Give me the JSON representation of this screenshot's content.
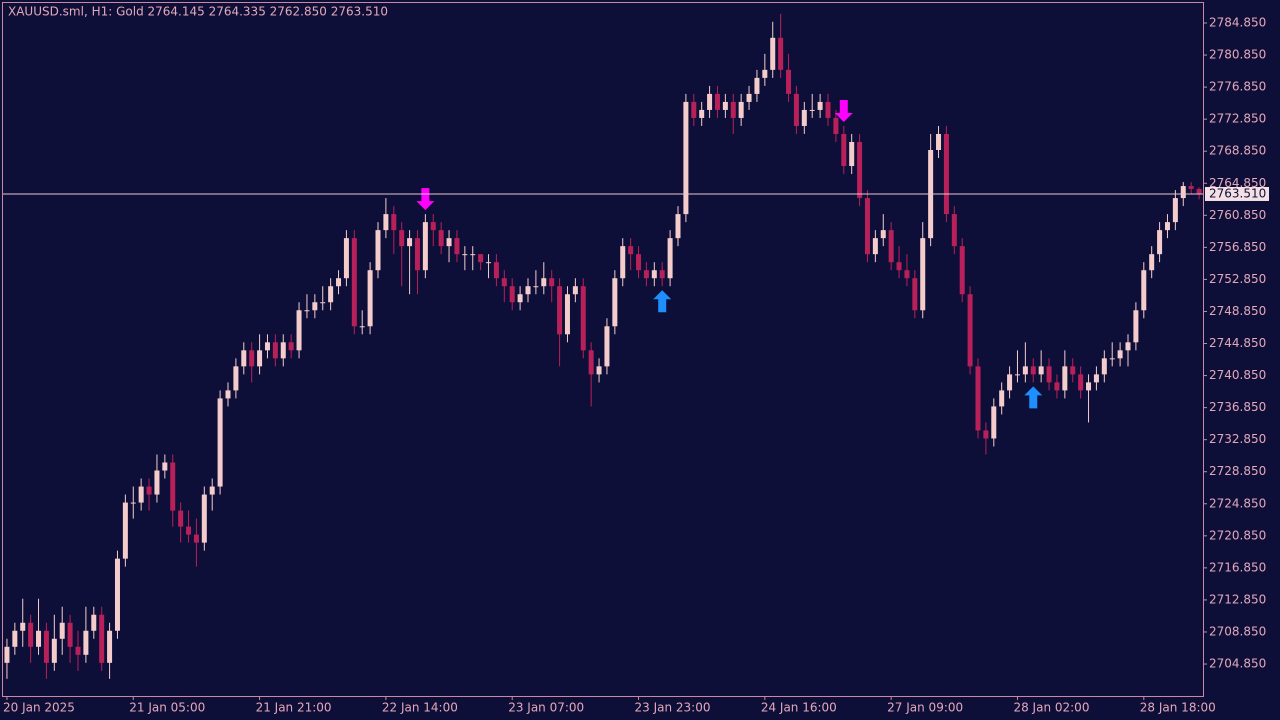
{
  "chart_data": {
    "type": "candlestick",
    "title": "XAUUSD.sml, H1:  Gold  2764.145 2764.335 2762.850 2763.510",
    "bull_color": "#f4cccc",
    "bear_color": "#b8205a",
    "ylim": [
      2700.86,
      2787.72
    ],
    "yticks": [
      {
        "value": 2704.85,
        "label": "2704.850"
      },
      {
        "value": 2708.85,
        "label": "2708.850"
      },
      {
        "value": 2712.85,
        "label": "2712.850"
      },
      {
        "value": 2716.85,
        "label": "2716.850"
      },
      {
        "value": 2720.85,
        "label": "2720.850"
      },
      {
        "value": 2724.85,
        "label": "2724.850"
      },
      {
        "value": 2728.85,
        "label": "2728.850"
      },
      {
        "value": 2732.85,
        "label": "2732.850"
      },
      {
        "value": 2736.85,
        "label": "2736.850"
      },
      {
        "value": 2740.85,
        "label": "2740.850"
      },
      {
        "value": 2744.85,
        "label": "2744.850"
      },
      {
        "value": 2748.85,
        "label": "2748.850"
      },
      {
        "value": 2752.85,
        "label": "2752.850"
      },
      {
        "value": 2756.85,
        "label": "2756.850"
      },
      {
        "value": 2760.85,
        "label": "2760.850"
      },
      {
        "value": 2764.85,
        "label": "2764.850"
      },
      {
        "value": 2768.85,
        "label": "2768.850"
      },
      {
        "value": 2772.85,
        "label": "2772.850"
      },
      {
        "value": 2776.85,
        "label": "2776.850"
      },
      {
        "value": 2780.85,
        "label": "2780.850"
      },
      {
        "value": 2784.85,
        "label": "2784.850"
      }
    ],
    "xticks": [
      {
        "value": 0,
        "label": "20 Jan 2025"
      },
      {
        "value": 16,
        "label": "21 Jan 05:00"
      },
      {
        "value": 32,
        "label": "21 Jan 21:00"
      },
      {
        "value": 48,
        "label": "22 Jan 14:00"
      },
      {
        "value": 64,
        "label": "23 Jan 07:00"
      },
      {
        "value": 80,
        "label": "23 Jan 23:00"
      },
      {
        "value": 96,
        "label": "24 Jan 16:00"
      },
      {
        "value": 112,
        "label": "27 Jan 09:00"
      },
      {
        "value": 128,
        "label": "28 Jan 02:00"
      },
      {
        "value": 144,
        "label": "28 Jan 18:00"
      }
    ],
    "last_price": {
      "value": 2763.51,
      "label": "2763.510"
    },
    "buy_signals": [
      83,
      130
    ],
    "sell_signals": [
      53,
      106
    ],
    "buy_color": "#1e8fff",
    "sell_color": "#ff00ff",
    "candles": [
      [
        2705,
        2708,
        2703,
        2707
      ],
      [
        2707,
        2710,
        2706,
        2709
      ],
      [
        2709,
        2713,
        2707,
        2710
      ],
      [
        2710,
        2711,
        2705,
        2707
      ],
      [
        2707,
        2713,
        2706,
        2709
      ],
      [
        2709,
        2710,
        2703,
        2705
      ],
      [
        2705,
        2711,
        2704,
        2708
      ],
      [
        2708,
        2712,
        2706,
        2710
      ],
      [
        2710,
        2711,
        2705,
        2707
      ],
      [
        2707,
        2709,
        2704,
        2706
      ],
      [
        2706,
        2712,
        2705,
        2709
      ],
      [
        2709,
        2712,
        2708,
        2711
      ],
      [
        2711,
        2712,
        2704,
        2705
      ],
      [
        2705,
        2710,
        2703,
        2709
      ],
      [
        2709,
        2719,
        2708,
        2718
      ],
      [
        2718,
        2726,
        2717,
        2725
      ],
      [
        2725,
        2727,
        2723,
        2725
      ],
      [
        2725,
        2728,
        2724,
        2727
      ],
      [
        2727,
        2728,
        2724,
        2726
      ],
      [
        2726,
        2731,
        2725,
        2729
      ],
      [
        2729,
        2731,
        2728,
        2730
      ],
      [
        2730,
        2731,
        2722,
        2724
      ],
      [
        2724,
        2725,
        2720,
        2722
      ],
      [
        2722,
        2724,
        2720,
        2721
      ],
      [
        2721,
        2723,
        2717,
        2720
      ],
      [
        2720,
        2727,
        2719,
        2726
      ],
      [
        2726,
        2728,
        2724,
        2727
      ],
      [
        2727,
        2739,
        2726,
        2738
      ],
      [
        2738,
        2740,
        2737,
        2739
      ],
      [
        2739,
        2743,
        2738,
        2742
      ],
      [
        2742,
        2745,
        2741,
        2744
      ],
      [
        2744,
        2745,
        2740,
        2742
      ],
      [
        2742,
        2746,
        2741,
        2744
      ],
      [
        2744,
        2746,
        2743,
        2745
      ],
      [
        2745,
        2746,
        2742,
        2743
      ],
      [
        2743,
        2746,
        2742,
        2745
      ],
      [
        2745,
        2746,
        2743,
        2744
      ],
      [
        2744,
        2750,
        2743,
        2749
      ],
      [
        2749,
        2751,
        2748,
        2749
      ],
      [
        2749,
        2751,
        2748,
        2750
      ],
      [
        2750,
        2752,
        2749,
        2750
      ],
      [
        2750,
        2753,
        2749,
        2752
      ],
      [
        2752,
        2754,
        2751,
        2753
      ],
      [
        2753,
        2759,
        2752,
        2758
      ],
      [
        2758,
        2759,
        2746,
        2747
      ],
      [
        2747,
        2749,
        2746,
        2747
      ],
      [
        2747,
        2755,
        2746,
        2754
      ],
      [
        2754,
        2760,
        2753,
        2759
      ],
      [
        2759,
        2763,
        2758,
        2761
      ],
      [
        2761,
        2762,
        2756,
        2759
      ],
      [
        2759,
        2760,
        2752,
        2757
      ],
      [
        2757,
        2759,
        2751,
        2758
      ],
      [
        2758,
        2759,
        2751,
        2754
      ],
      [
        2754,
        2761,
        2753,
        2760
      ],
      [
        2760,
        2761,
        2757,
        2759
      ],
      [
        2759,
        2760,
        2756,
        2757
      ],
      [
        2757,
        2759,
        2755,
        2758
      ],
      [
        2758,
        2759,
        2755,
        2756
      ],
      [
        2756,
        2757,
        2754,
        2756
      ],
      [
        2756,
        2757,
        2754,
        2756
      ],
      [
        2756,
        2756,
        2754,
        2755
      ],
      [
        2755,
        2756,
        2753,
        2755
      ],
      [
        2755,
        2756,
        2752,
        2753
      ],
      [
        2753,
        2754,
        2750,
        2752
      ],
      [
        2752,
        2753,
        2749,
        2750
      ],
      [
        2750,
        2752,
        2749,
        2751
      ],
      [
        2751,
        2753,
        2750,
        2752
      ],
      [
        2752,
        2754,
        2751,
        2752
      ],
      [
        2752,
        2755,
        2751,
        2753
      ],
      [
        2753,
        2754,
        2750,
        2752
      ],
      [
        2752,
        2753,
        2742,
        2746
      ],
      [
        2746,
        2752,
        2745,
        2751
      ],
      [
        2751,
        2753,
        2750,
        2752
      ],
      [
        2752,
        2753,
        2743,
        2744
      ],
      [
        2744,
        2745,
        2737,
        2741
      ],
      [
        2741,
        2743,
        2740,
        2742
      ],
      [
        2742,
        2748,
        2741,
        2747
      ],
      [
        2747,
        2754,
        2746,
        2753
      ],
      [
        2753,
        2758,
        2752,
        2757
      ],
      [
        2757,
        2758,
        2754,
        2756
      ],
      [
        2756,
        2757,
        2753,
        2754
      ],
      [
        2754,
        2755,
        2752,
        2753
      ],
      [
        2753,
        2755,
        2752,
        2754
      ],
      [
        2754,
        2755,
        2752,
        2753
      ],
      [
        2753,
        2759,
        2752,
        2758
      ],
      [
        2758,
        2762,
        2757,
        2761
      ],
      [
        2761,
        2776,
        2760,
        2775
      ],
      [
        2775,
        2776,
        2772,
        2773
      ],
      [
        2773,
        2775,
        2772,
        2774
      ],
      [
        2774,
        2777,
        2773,
        2776
      ],
      [
        2776,
        2777,
        2773,
        2774
      ],
      [
        2774,
        2776,
        2773,
        2775
      ],
      [
        2775,
        2776,
        2771,
        2773
      ],
      [
        2773,
        2776,
        2772,
        2775
      ],
      [
        2775,
        2777,
        2774,
        2776
      ],
      [
        2776,
        2779,
        2775,
        2778
      ],
      [
        2778,
        2781,
        2777,
        2779
      ],
      [
        2779,
        2785,
        2778,
        2783
      ],
      [
        2783,
        2786,
        2778,
        2779
      ],
      [
        2779,
        2781,
        2775,
        2776
      ],
      [
        2776,
        2777,
        2771,
        2772
      ],
      [
        2772,
        2775,
        2771,
        2774
      ],
      [
        2774,
        2776,
        2773,
        2774
      ],
      [
        2774,
        2776,
        2773,
        2775
      ],
      [
        2775,
        2776,
        2772,
        2773
      ],
      [
        2773,
        2774,
        2770,
        2771
      ],
      [
        2771,
        2772,
        2766,
        2767
      ],
      [
        2767,
        2771,
        2766,
        2770
      ],
      [
        2770,
        2771,
        2762,
        2763
      ],
      [
        2763,
        2764,
        2755,
        2756
      ],
      [
        2756,
        2759,
        2755,
        2758
      ],
      [
        2758,
        2761,
        2757,
        2759
      ],
      [
        2759,
        2760,
        2754,
        2755
      ],
      [
        2755,
        2757,
        2753,
        2754
      ],
      [
        2754,
        2756,
        2752,
        2753
      ],
      [
        2753,
        2754,
        2748,
        2749
      ],
      [
        2749,
        2760,
        2748,
        2758
      ],
      [
        2758,
        2771,
        2757,
        2769
      ],
      [
        2769,
        2772,
        2768,
        2771
      ],
      [
        2771,
        2772,
        2760,
        2761
      ],
      [
        2761,
        2762,
        2756,
        2757
      ],
      [
        2757,
        2758,
        2750,
        2751
      ],
      [
        2751,
        2752,
        2741,
        2742
      ],
      [
        2742,
        2743,
        2733,
        2734
      ],
      [
        2734,
        2735,
        2731,
        2733
      ],
      [
        2733,
        2738,
        2732,
        2737
      ],
      [
        2737,
        2740,
        2736,
        2739
      ],
      [
        2739,
        2742,
        2738,
        2741
      ],
      [
        2741,
        2744,
        2740,
        2741
      ],
      [
        2741,
        2745,
        2740,
        2742
      ],
      [
        2742,
        2743,
        2740,
        2741
      ],
      [
        2741,
        2744,
        2740,
        2742
      ],
      [
        2742,
        2743,
        2739,
        2740
      ],
      [
        2740,
        2741,
        2738,
        2739
      ],
      [
        2739,
        2744,
        2738,
        2742
      ],
      [
        2742,
        2743,
        2740,
        2741
      ],
      [
        2741,
        2742,
        2738,
        2739
      ],
      [
        2739,
        2741,
        2735,
        2740
      ],
      [
        2740,
        2742,
        2739,
        2741
      ],
      [
        2741,
        2744,
        2740,
        2743
      ],
      [
        2743,
        2745,
        2742,
        2743
      ],
      [
        2743,
        2745,
        2742,
        2744
      ],
      [
        2744,
        2746,
        2742,
        2745
      ],
      [
        2745,
        2750,
        2744,
        2749
      ],
      [
        2749,
        2755,
        2748,
        2754
      ],
      [
        2754,
        2757,
        2753,
        2756
      ],
      [
        2756,
        2760,
        2755,
        2759
      ],
      [
        2759,
        2761,
        2758,
        2760
      ],
      [
        2760,
        2764,
        2759,
        2763
      ],
      [
        2763,
        2765,
        2762,
        2764.5
      ],
      [
        2764.5,
        2765,
        2763.5,
        2764.145
      ],
      [
        2764.145,
        2764.335,
        2762.85,
        2763.51
      ]
    ]
  }
}
